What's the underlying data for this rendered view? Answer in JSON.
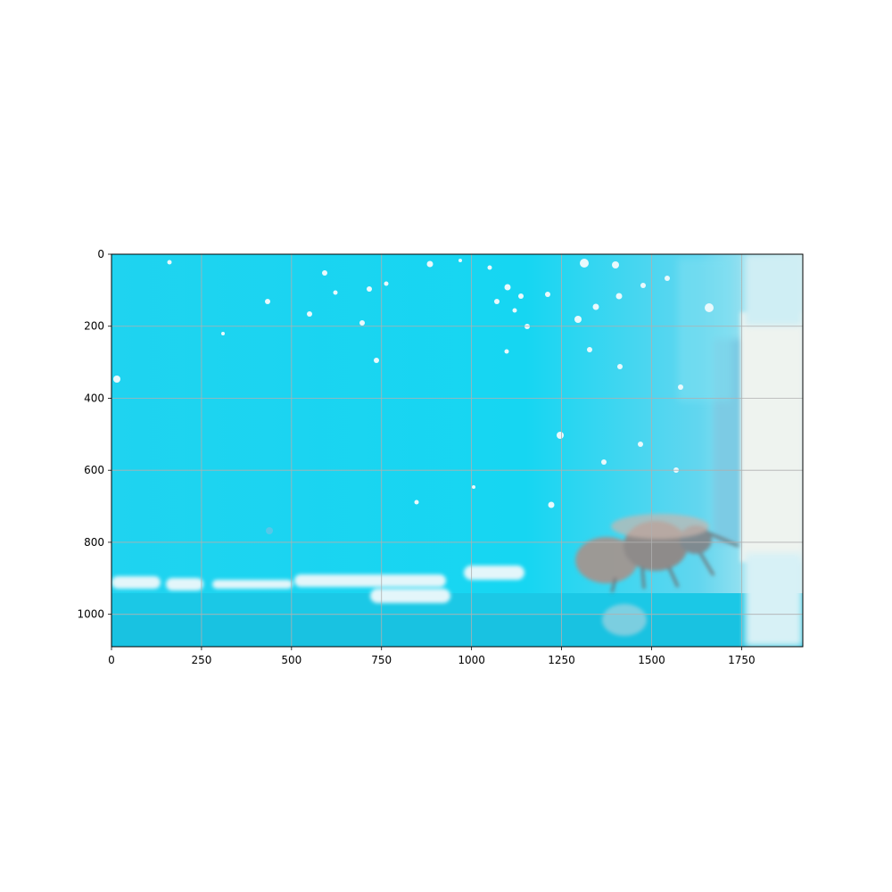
{
  "chart_data": {
    "type": "image",
    "title": "",
    "xlabel": "",
    "ylabel": "",
    "xlim": [
      0,
      1920
    ],
    "ylim": [
      1090,
      0
    ],
    "grid": true,
    "x_ticks": [
      0,
      250,
      500,
      750,
      1000,
      1250,
      1500,
      1750
    ],
    "y_ticks": [
      0,
      200,
      400,
      600,
      800,
      1000
    ],
    "x_tick_labels": [
      "0",
      "250",
      "500",
      "750",
      "1000",
      "1250",
      "1500",
      "1750"
    ],
    "y_tick_labels": [
      "0",
      "200",
      "400",
      "600",
      "800",
      "1000"
    ],
    "subject": "bee on a blue surface",
    "colors": {
      "background_blue": "#1ad4f0",
      "highlight": "#e6f8fb",
      "bee_body": "#a0958f",
      "grid": "#b0b0b0",
      "axis": "#000000"
    }
  }
}
